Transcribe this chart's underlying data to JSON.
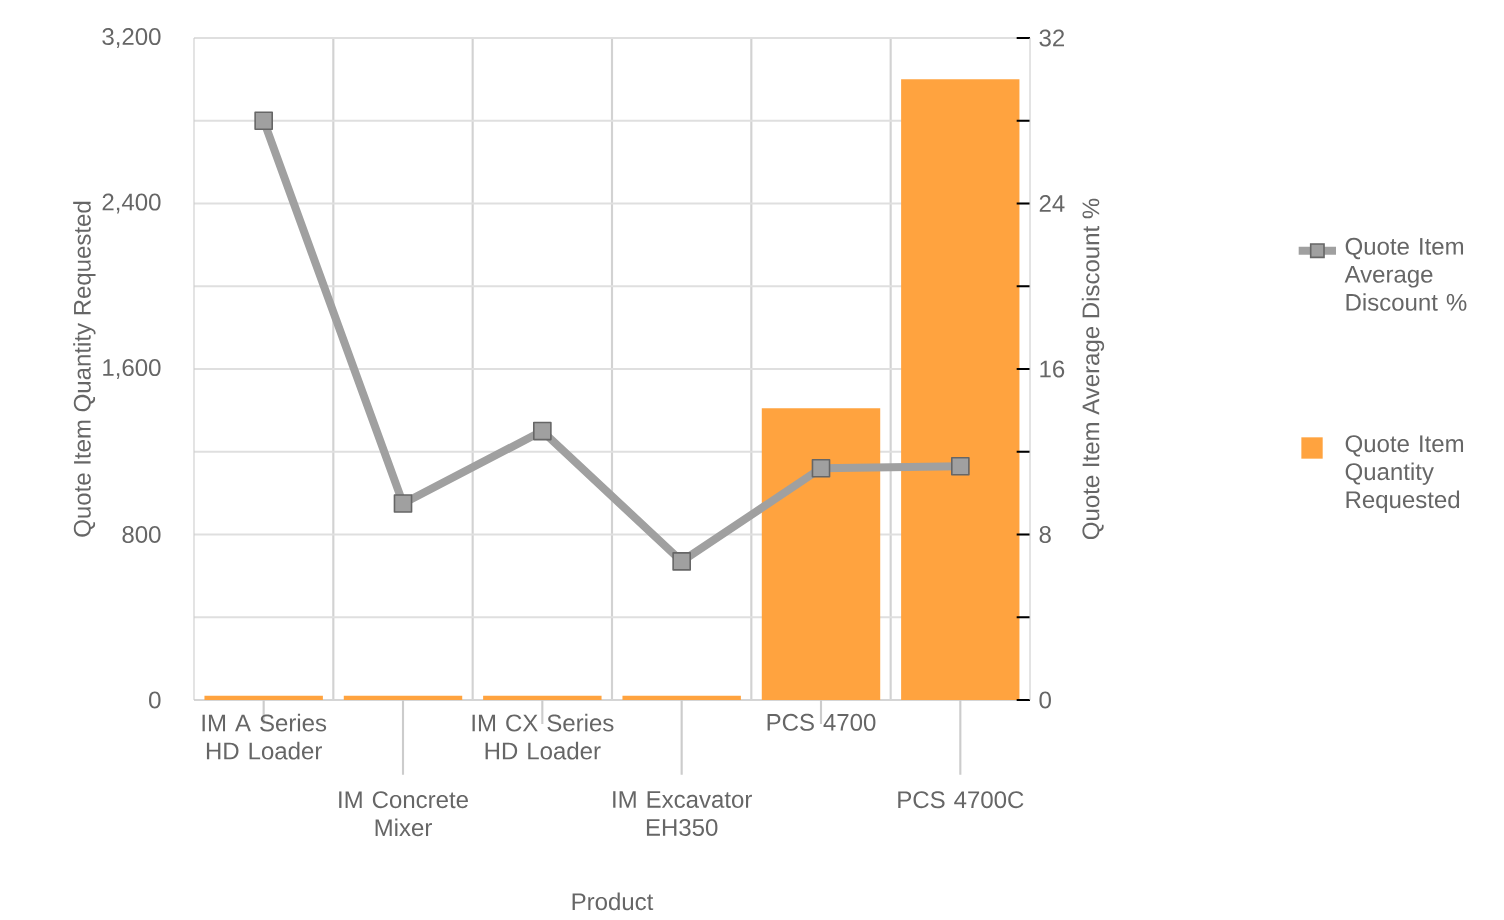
{
  "chart_data": {
    "type": "bar",
    "xlabel": "Product",
    "ylabel": "Quote Item Quantity Requested",
    "y2label": "Quote Item Average Discount %",
    "categories": [
      "IM A Series HD Loader",
      "IM Concrete Mixer",
      "IM CX Series HD Loader",
      "IM Excavator EH350",
      "PCS 4700",
      "PCS 4700C"
    ],
    "series": [
      {
        "name": "Quote Item Average Discount %",
        "type": "line",
        "axis": "y2",
        "color": "#a0a0a0",
        "values": [
          28,
          9.5,
          13,
          6.7,
          11.2,
          11.3
        ]
      },
      {
        "name": "Quote Item Quantity Requested",
        "color": "#ffa33f",
        "values": [
          20,
          20,
          20,
          20,
          1410,
          3000
        ]
      }
    ],
    "ylim": [
      0,
      3200
    ],
    "yticks": [
      0,
      {
        "value": 400,
        "label": null
      },
      800,
      {
        "value": 1200,
        "label": null
      },
      {
        "value": 1600,
        "label": "1,600"
      },
      {
        "value": 2000,
        "label": null
      },
      {
        "value": 2400,
        "label": "2,400"
      },
      {
        "value": 2800,
        "label": null
      },
      {
        "value": 3200,
        "label": "3,200"
      }
    ],
    "y2lim": [
      0,
      32
    ],
    "y2ticks": [
      0,
      {
        "value": 4,
        "label": null
      },
      8,
      {
        "value": 12,
        "label": null
      },
      16,
      {
        "value": 20,
        "label": null
      },
      24,
      {
        "value": 28,
        "label": null
      },
      32
    ],
    "grid": true,
    "legend": "right",
    "marker": "square",
    "line_style": "solid"
  }
}
